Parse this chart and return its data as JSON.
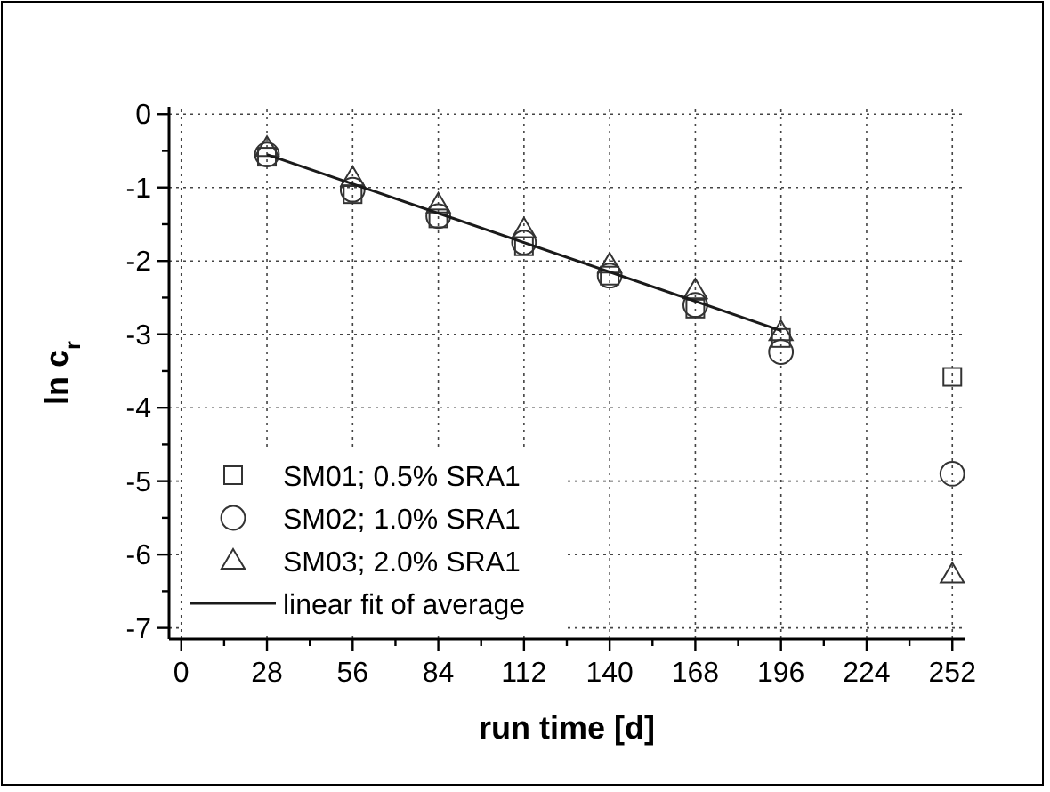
{
  "chart_data": {
    "type": "scatter",
    "xlabel": "run time [d]",
    "ylabel": "ln c$_{r}$",
    "x": [
      28,
      56,
      84,
      112,
      140,
      168,
      196,
      252
    ],
    "series": [
      {
        "name": "SM01; 0.5% SRA1",
        "color": "#333333",
        "marker": "square",
        "values": [
          -0.58,
          -1.09,
          -1.42,
          -1.8,
          -2.2,
          -2.65,
          -3.05,
          -3.58
        ]
      },
      {
        "name": "SM02; 1.0% SRA1",
        "color": "#333333",
        "marker": "circle",
        "values": [
          -0.55,
          -1.03,
          -1.39,
          -1.75,
          -2.2,
          -2.6,
          -3.24,
          -4.9
        ]
      },
      {
        "name": "SM03; 2.0% SRA1",
        "color": "#333333",
        "marker": "triangle",
        "values": [
          -0.46,
          -0.87,
          -1.23,
          -1.57,
          -2.05,
          -2.4,
          -2.97,
          -6.27
        ]
      },
      {
        "name": "linear fit of average",
        "type": "line",
        "color": "#1a1a1a",
        "marker": "none",
        "line_style": "solid",
        "x": [
          28,
          196
        ],
        "values": [
          -0.55,
          -2.95
        ]
      }
    ],
    "xlim": [
      -4,
      256
    ],
    "ylim": [
      -7.15,
      0.1
    ],
    "xticks": [
      0,
      {
        "value": 14,
        "label": null
      },
      28,
      {
        "value": 42,
        "label": null
      },
      56,
      {
        "value": 70,
        "label": null
      },
      84,
      {
        "value": 98,
        "label": null
      },
      112,
      {
        "value": 126,
        "label": null
      },
      140,
      {
        "value": 154,
        "label": null
      },
      168,
      {
        "value": 182,
        "label": null
      },
      196,
      {
        "value": 210,
        "label": null
      },
      224,
      {
        "value": 238,
        "label": null
      },
      252
    ],
    "yticks": [
      -7,
      {
        "value": -6.5,
        "label": null
      },
      -6,
      {
        "value": -5.5,
        "label": null
      },
      -5,
      {
        "value": -4.5,
        "label": null
      },
      -4,
      {
        "value": -3.5,
        "label": null
      },
      -3,
      {
        "value": -2.5,
        "label": null
      },
      -2,
      {
        "value": -1.5,
        "label": null
      },
      -1,
      {
        "value": -0.5,
        "label": null
      },
      0
    ],
    "grid": true,
    "legend": "bottom left"
  }
}
